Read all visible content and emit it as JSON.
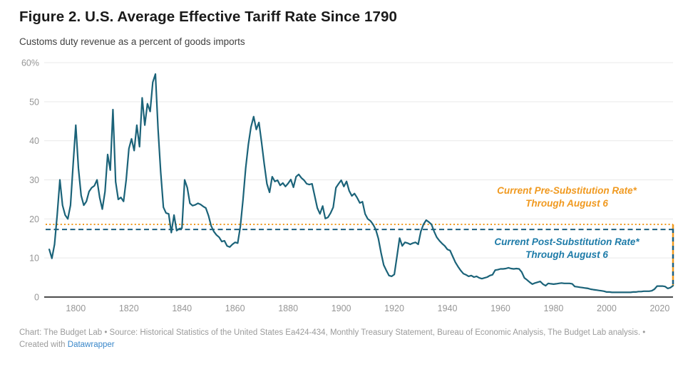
{
  "header": {
    "title": "Figure 2. U.S. Average Effective Tariff Rate Since 1790",
    "subtitle": "Customs duty revenue as a percent of goods imports"
  },
  "annotations": {
    "pre": {
      "line1": "Current Pre-Substitution Rate*",
      "line2": "Through August 6",
      "value": 18.6,
      "color": "#f0991f"
    },
    "post": {
      "line1": "Current Post-Substitution Rate*",
      "line2": "Through August 6",
      "value": 17.3,
      "color": "#1d7ba8"
    }
  },
  "footer": {
    "credit": "Chart: The Budget Lab • Source: Historical Statistics of the United States Ea424-434, Monthly Treasury Statement, Bureau of Economic Analysis, The Budget Lab analysis. •",
    "created_with": "Created with",
    "link_label": "Datawrapper",
    "link_color": "#3a87c9"
  },
  "chart_data": {
    "type": "line",
    "title": "Figure 2. U.S. Average Effective Tariff Rate Since 1790",
    "subtitle": "Customs duty revenue as a percent of goods imports",
    "xlabel": "",
    "ylabel": "Customs duty revenue as a percent of goods imports (%)",
    "xlim": [
      1788.1,
      2025
    ],
    "ylim": [
      0,
      60
    ],
    "grid": true,
    "x_ticks": [
      1800,
      1820,
      1840,
      1860,
      1880,
      1900,
      1920,
      1940,
      1960,
      1980,
      2000,
      2020
    ],
    "y_ticks": [
      0,
      10,
      20,
      30,
      40,
      50,
      60
    ],
    "y_tick_labels": [
      "0",
      "10",
      "20",
      "30",
      "40",
      "50",
      "60%"
    ],
    "colors": {
      "line": "#1b6379",
      "grid": "#e9e9e9",
      "baseline": "#4d4d4d",
      "tick_label": "#969696",
      "pre_line": "#f0991f",
      "post_line": "#1d5f7e"
    },
    "reference_lines": [
      {
        "name": "pre-substitution-rate",
        "label": "Current Pre-Substitution Rate* Through August 6",
        "value": 18.6,
        "style": "dotted",
        "color": "#f0991f"
      },
      {
        "name": "post-substitution-rate",
        "label": "Current Post-Substitution Rate* Through August 6",
        "value": 17.3,
        "style": "dashed",
        "color": "#1d5f7e"
      }
    ],
    "projection_connector": {
      "x": 2025,
      "from": 2.9,
      "to": 18.6
    },
    "series": [
      {
        "name": "U.S. average effective tariff rate",
        "color": "#1b6379",
        "points": [
          [
            1790,
            12.2
          ],
          [
            1791,
            9.9
          ],
          [
            1792,
            13.5
          ],
          [
            1793,
            21
          ],
          [
            1794,
            30
          ],
          [
            1795,
            23.5
          ],
          [
            1796,
            21
          ],
          [
            1797,
            20
          ],
          [
            1798,
            23.5
          ],
          [
            1799,
            34
          ],
          [
            1800,
            44
          ],
          [
            1801,
            33
          ],
          [
            1802,
            26
          ],
          [
            1803,
            23.5
          ],
          [
            1804,
            24.5
          ],
          [
            1805,
            27
          ],
          [
            1806,
            28
          ],
          [
            1807,
            28.5
          ],
          [
            1808,
            30
          ],
          [
            1809,
            25.5
          ],
          [
            1810,
            22.5
          ],
          [
            1811,
            27
          ],
          [
            1812,
            36.5
          ],
          [
            1813,
            32.5
          ],
          [
            1814,
            48
          ],
          [
            1815,
            29.5
          ],
          [
            1816,
            25
          ],
          [
            1817,
            25.5
          ],
          [
            1818,
            24.5
          ],
          [
            1819,
            30
          ],
          [
            1820,
            38
          ],
          [
            1821,
            40.5
          ],
          [
            1822,
            37.5
          ],
          [
            1823,
            44
          ],
          [
            1824,
            38.5
          ],
          [
            1825,
            51
          ],
          [
            1826,
            44
          ],
          [
            1827,
            49.5
          ],
          [
            1828,
            47.5
          ],
          [
            1829,
            55
          ],
          [
            1830,
            57.1
          ],
          [
            1831,
            43
          ],
          [
            1832,
            32
          ],
          [
            1833,
            23
          ],
          [
            1834,
            21.5
          ],
          [
            1835,
            21.3
          ],
          [
            1836,
            16.5
          ],
          [
            1837,
            21
          ],
          [
            1838,
            17
          ],
          [
            1839,
            17.5
          ],
          [
            1840,
            17.6
          ],
          [
            1841,
            30
          ],
          [
            1842,
            28
          ],
          [
            1843,
            24
          ],
          [
            1844,
            23.4
          ],
          [
            1845,
            23.6
          ],
          [
            1846,
            24
          ],
          [
            1847,
            23.7
          ],
          [
            1848,
            23.2
          ],
          [
            1849,
            22.8
          ],
          [
            1850,
            20.8
          ],
          [
            1851,
            18.2
          ],
          [
            1852,
            16.8
          ],
          [
            1853,
            15.9
          ],
          [
            1854,
            15.3
          ],
          [
            1855,
            14.2
          ],
          [
            1856,
            14.4
          ],
          [
            1857,
            13.1
          ],
          [
            1858,
            12.8
          ],
          [
            1859,
            13.5
          ],
          [
            1860,
            14
          ],
          [
            1861,
            13.8
          ],
          [
            1862,
            18
          ],
          [
            1863,
            25
          ],
          [
            1864,
            33
          ],
          [
            1865,
            39
          ],
          [
            1866,
            43.5
          ],
          [
            1867,
            46.2
          ],
          [
            1868,
            42.9
          ],
          [
            1869,
            44.7
          ],
          [
            1870,
            39.6
          ],
          [
            1871,
            34.1
          ],
          [
            1872,
            29
          ],
          [
            1873,
            26.8
          ],
          [
            1874,
            30.8
          ],
          [
            1875,
            29.6
          ],
          [
            1876,
            29.9
          ],
          [
            1877,
            28.6
          ],
          [
            1878,
            29.2
          ],
          [
            1879,
            28.3
          ],
          [
            1880,
            29.1
          ],
          [
            1881,
            30.1
          ],
          [
            1882,
            28.1
          ],
          [
            1883,
            30.8
          ],
          [
            1884,
            31.4
          ],
          [
            1885,
            30.5
          ],
          [
            1886,
            29.9
          ],
          [
            1887,
            29
          ],
          [
            1888,
            28.8
          ],
          [
            1889,
            29
          ],
          [
            1890,
            25.9
          ],
          [
            1891,
            22.8
          ],
          [
            1892,
            21.3
          ],
          [
            1893,
            23.3
          ],
          [
            1894,
            20.1
          ],
          [
            1895,
            20.4
          ],
          [
            1896,
            21.5
          ],
          [
            1897,
            23
          ],
          [
            1898,
            28
          ],
          [
            1899,
            29
          ],
          [
            1900,
            29.9
          ],
          [
            1901,
            28.3
          ],
          [
            1902,
            29.6
          ],
          [
            1903,
            27.2
          ],
          [
            1904,
            25.9
          ],
          [
            1905,
            26.5
          ],
          [
            1906,
            25.4
          ],
          [
            1907,
            24.1
          ],
          [
            1908,
            24.4
          ],
          [
            1909,
            21.3
          ],
          [
            1910,
            20
          ],
          [
            1911,
            19.5
          ],
          [
            1912,
            18.6
          ],
          [
            1913,
            17.3
          ],
          [
            1914,
            15
          ],
          [
            1915,
            11.3
          ],
          [
            1916,
            8.2
          ],
          [
            1917,
            6.8
          ],
          [
            1918,
            5.5
          ],
          [
            1919,
            5.3
          ],
          [
            1920,
            5.8
          ],
          [
            1921,
            10.4
          ],
          [
            1922,
            15.1
          ],
          [
            1923,
            13.1
          ],
          [
            1924,
            14
          ],
          [
            1925,
            13.8
          ],
          [
            1926,
            13.5
          ],
          [
            1927,
            13.8
          ],
          [
            1928,
            14
          ],
          [
            1929,
            13.5
          ],
          [
            1930,
            16.8
          ],
          [
            1931,
            18.6
          ],
          [
            1932,
            19.7
          ],
          [
            1933,
            19.2
          ],
          [
            1934,
            18.6
          ],
          [
            1935,
            16.8
          ],
          [
            1936,
            15.3
          ],
          [
            1937,
            14.4
          ],
          [
            1938,
            13.7
          ],
          [
            1939,
            13.1
          ],
          [
            1940,
            12.2
          ],
          [
            1941,
            11.9
          ],
          [
            1942,
            10.4
          ],
          [
            1943,
            8.9
          ],
          [
            1944,
            7.8
          ],
          [
            1945,
            6.8
          ],
          [
            1946,
            6
          ],
          [
            1947,
            5.7
          ],
          [
            1948,
            5.3
          ],
          [
            1949,
            5.5
          ],
          [
            1950,
            5.1
          ],
          [
            1951,
            5.3
          ],
          [
            1952,
            4.9
          ],
          [
            1953,
            4.7
          ],
          [
            1954,
            4.9
          ],
          [
            1955,
            5.1
          ],
          [
            1956,
            5.5
          ],
          [
            1957,
            5.7
          ],
          [
            1958,
            6.9
          ],
          [
            1959,
            7
          ],
          [
            1960,
            7.2
          ],
          [
            1961,
            7.2
          ],
          [
            1962,
            7.3
          ],
          [
            1963,
            7.5
          ],
          [
            1964,
            7.3
          ],
          [
            1965,
            7.2
          ],
          [
            1966,
            7.3
          ],
          [
            1967,
            7.2
          ],
          [
            1968,
            6.4
          ],
          [
            1969,
            4.9
          ],
          [
            1970,
            4.4
          ],
          [
            1971,
            3.8
          ],
          [
            1972,
            3.3
          ],
          [
            1973,
            3.6
          ],
          [
            1974,
            3.8
          ],
          [
            1975,
            4
          ],
          [
            1976,
            3.3
          ],
          [
            1977,
            2.9
          ],
          [
            1978,
            3.5
          ],
          [
            1979,
            3.4
          ],
          [
            1980,
            3.3
          ],
          [
            1981,
            3.4
          ],
          [
            1982,
            3.5
          ],
          [
            1983,
            3.6
          ],
          [
            1984,
            3.5
          ],
          [
            1985,
            3.5
          ],
          [
            1986,
            3.5
          ],
          [
            1987,
            3.4
          ],
          [
            1988,
            2.7
          ],
          [
            1989,
            2.6
          ],
          [
            1990,
            2.5
          ],
          [
            1991,
            2.4
          ],
          [
            1992,
            2.3
          ],
          [
            1993,
            2.2
          ],
          [
            1994,
            2
          ],
          [
            1995,
            1.9
          ],
          [
            1996,
            1.8
          ],
          [
            1997,
            1.7
          ],
          [
            1998,
            1.6
          ],
          [
            1999,
            1.5
          ],
          [
            2000,
            1.3
          ],
          [
            2001,
            1.3
          ],
          [
            2002,
            1.2
          ],
          [
            2003,
            1.2
          ],
          [
            2004,
            1.2
          ],
          [
            2005,
            1.2
          ],
          [
            2006,
            1.2
          ],
          [
            2007,
            1.2
          ],
          [
            2008,
            1.2
          ],
          [
            2009,
            1.2
          ],
          [
            2010,
            1.3
          ],
          [
            2011,
            1.3
          ],
          [
            2012,
            1.4
          ],
          [
            2013,
            1.4
          ],
          [
            2014,
            1.5
          ],
          [
            2015,
            1.5
          ],
          [
            2016,
            1.5
          ],
          [
            2017,
            1.6
          ],
          [
            2018,
            2
          ],
          [
            2019,
            2.8
          ],
          [
            2020,
            2.8
          ],
          [
            2021,
            2.8
          ],
          [
            2022,
            2.7
          ],
          [
            2023,
            2.2
          ],
          [
            2024,
            2.4
          ],
          [
            2025,
            2.9
          ]
        ]
      }
    ]
  }
}
